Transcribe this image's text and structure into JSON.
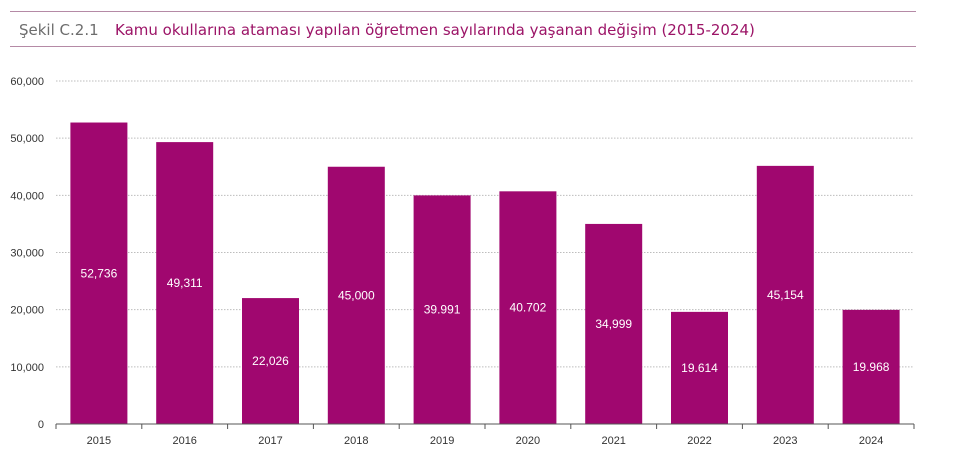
{
  "header": {
    "figure_label": "Şekil C.2.1",
    "title": "Kamu okullarına ataması yapılan öğretmen sayılarında yaşanan değişim (2015-2024)"
  },
  "colors": {
    "bar": "#a0076f",
    "grid": "#bdbdbd",
    "axis": "#555555",
    "rule": "#b58aa6"
  },
  "chart_data": {
    "type": "bar",
    "categories": [
      "2015",
      "2016",
      "2017",
      "2018",
      "2019",
      "2020",
      "2021",
      "2022",
      "2023",
      "2024"
    ],
    "values": [
      52736,
      49311,
      22026,
      45000,
      39991,
      40702,
      34999,
      19614,
      45154,
      19968
    ],
    "data_labels": [
      "52,736",
      "49,311",
      "22,026",
      "45,000",
      "39.991",
      "40.702",
      "34,999",
      "19.614",
      "45,154",
      "19.968"
    ],
    "ylim": [
      0,
      60000
    ],
    "yticks": [
      0,
      10000,
      20000,
      30000,
      40000,
      50000,
      60000
    ],
    "ytick_labels": [
      "0",
      "10,000",
      "20,000",
      "30,000",
      "40,000",
      "50,000",
      "60,000"
    ],
    "grid": true,
    "legend": false
  }
}
